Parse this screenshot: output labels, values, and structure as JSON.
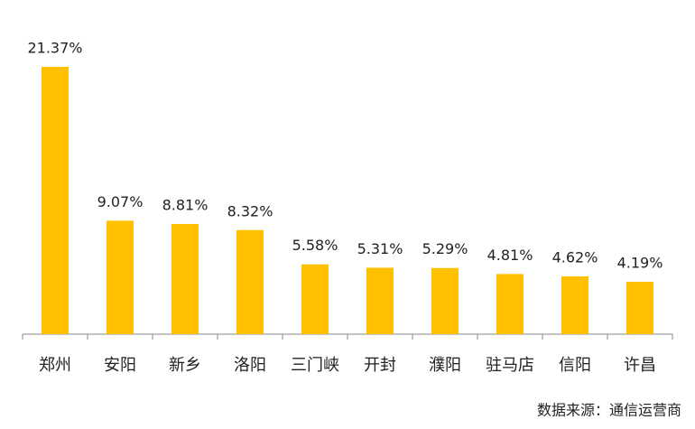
{
  "chart_data": {
    "type": "bar",
    "categories": [
      "郑州",
      "安阳",
      "新乡",
      "洛阳",
      "三门峡",
      "开封",
      "濮阳",
      "驻马店",
      "信阳",
      "许昌"
    ],
    "values": [
      21.37,
      9.07,
      8.81,
      8.32,
      5.58,
      5.31,
      5.29,
      4.81,
      4.62,
      4.19
    ],
    "value_labels": [
      "21.37%",
      "9.07%",
      "8.81%",
      "8.32%",
      "5.58%",
      "5.31%",
      "5.29%",
      "4.81%",
      "4.62%",
      "4.19%"
    ],
    "color": "#ffc000",
    "source": "数据来源：通信运营商"
  }
}
